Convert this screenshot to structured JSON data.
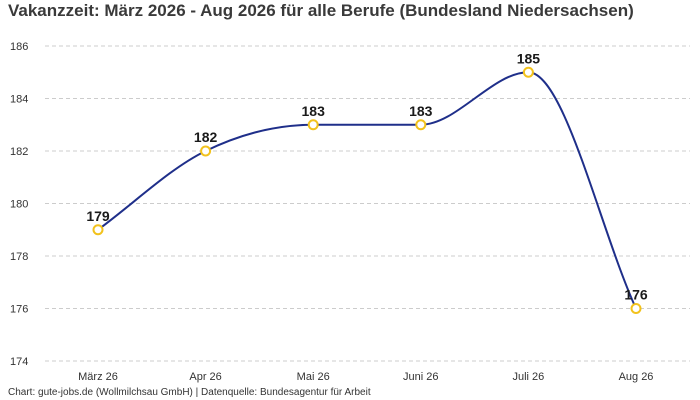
{
  "chart_data": {
    "type": "line",
    "title": "Vakanzzeit: März 2026 - Aug 2026 für alle Berufe (Bundesland Niedersachsen)",
    "categories": [
      "März 26",
      "Apr 26",
      "Mai 26",
      "Juni 26",
      "Juli 26",
      "Aug 26"
    ],
    "series": [
      {
        "values": [
          179,
          182,
          183,
          183,
          185,
          176
        ]
      }
    ],
    "data_labels": [
      "179",
      "182",
      "183",
      "183",
      "185",
      "176"
    ],
    "ylim": [
      174,
      186
    ],
    "yticks": [
      174,
      176,
      178,
      180,
      182,
      184,
      186
    ],
    "grid": "horizontal dashed",
    "line_color": "#1f2f8a",
    "marker_color": "#f2c21c",
    "xlabel": "",
    "ylabel": ""
  },
  "footer": {
    "source": "Chart: gute-jobs.de (Wollmilchsau GmbH) | Datenquelle: Bundesagentur für Arbeit"
  }
}
